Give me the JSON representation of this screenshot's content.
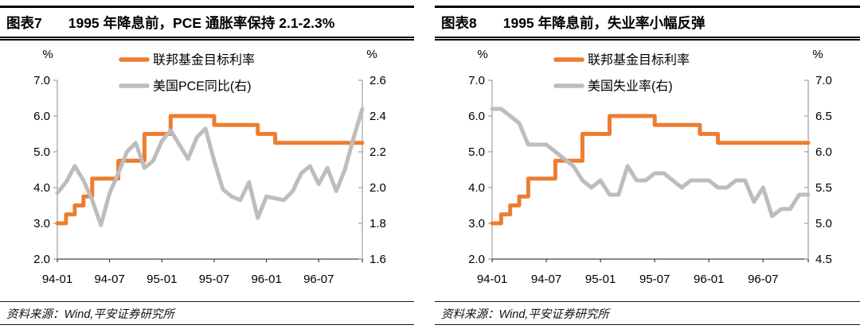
{
  "style": {
    "accent_orange": "#ED7D31",
    "series_gray": "#BDBDBD",
    "axis_line_color": "#A6A6A6",
    "x_axis_color": "#444444",
    "text_color": "#000000"
  },
  "panels": [
    {
      "fig_label": "图表7",
      "title": "1995 年降息前，PCE 通胀率保持 2.1-2.3%",
      "source": "资料来源：Wind,平安证券研究所"
    },
    {
      "fig_label": "图表8",
      "title": "1995 年降息前，失业率小幅反弹",
      "source": "资料来源：Wind,平安证券研究所"
    }
  ],
  "chart_data": [
    {
      "type": "line",
      "title": "1995 年降息前，PCE 通胀率保持 2.1-2.3%",
      "grid": false,
      "legend_position": "top",
      "x": [
        "94-01",
        "94-02",
        "94-03",
        "94-04",
        "94-05",
        "94-06",
        "94-07",
        "94-08",
        "94-09",
        "94-10",
        "94-11",
        "94-12",
        "95-01",
        "95-02",
        "95-03",
        "95-04",
        "95-05",
        "95-06",
        "95-07",
        "95-08",
        "95-09",
        "95-10",
        "95-11",
        "95-12",
        "96-01",
        "96-02",
        "96-03",
        "96-04",
        "96-05",
        "96-06",
        "96-07",
        "96-08",
        "96-09",
        "96-10",
        "96-11",
        "96-12"
      ],
      "x_tick_labels": [
        "94-01",
        "94-07",
        "95-01",
        "95-07",
        "96-01",
        "96-07"
      ],
      "axes": {
        "left": {
          "unit": "%",
          "min": 2.0,
          "max": 7.0,
          "tick_labels": [
            "7.0",
            "6.0",
            "5.0",
            "4.0",
            "3.0",
            "2.0"
          ]
        },
        "right": {
          "unit": "%",
          "min": 1.6,
          "max": 2.6,
          "tick_labels": [
            "2.6",
            "2.4",
            "2.2",
            "2.0",
            "1.8",
            "1.6"
          ]
        }
      },
      "series": [
        {
          "name": "联邦基金目标利率",
          "key": "fed-funds-target-rate-line",
          "axis": "left",
          "color": "#ED7D31",
          "line_style": "step",
          "values": [
            3.0,
            3.25,
            3.5,
            3.75,
            4.25,
            4.25,
            4.25,
            4.75,
            4.75,
            4.75,
            5.5,
            5.5,
            5.5,
            6.0,
            6.0,
            6.0,
            6.0,
            6.0,
            5.75,
            5.75,
            5.75,
            5.75,
            5.75,
            5.5,
            5.5,
            5.25,
            5.25,
            5.25,
            5.25,
            5.25,
            5.25,
            5.25,
            5.25,
            5.25,
            5.25,
            5.25
          ]
        },
        {
          "name": "美国PCE同比(右)",
          "key": "us-pce-yoy-line",
          "axis": "right",
          "color": "#BDBDBD",
          "line_style": "line",
          "values": [
            1.97,
            2.03,
            2.12,
            2.04,
            1.93,
            1.79,
            1.97,
            2.08,
            2.2,
            2.25,
            2.11,
            2.15,
            2.26,
            2.32,
            2.24,
            2.16,
            2.28,
            2.33,
            2.15,
            1.99,
            1.95,
            1.93,
            2.03,
            1.83,
            1.95,
            1.94,
            1.93,
            1.98,
            2.08,
            2.12,
            2.02,
            2.11,
            1.98,
            2.1,
            2.28,
            2.44
          ]
        }
      ]
    },
    {
      "type": "line",
      "title": "1995 年降息前，失业率小幅反弹",
      "grid": false,
      "legend_position": "top",
      "x": [
        "94-01",
        "94-02",
        "94-03",
        "94-04",
        "94-05",
        "94-06",
        "94-07",
        "94-08",
        "94-09",
        "94-10",
        "94-11",
        "94-12",
        "95-01",
        "95-02",
        "95-03",
        "95-04",
        "95-05",
        "95-06",
        "95-07",
        "95-08",
        "95-09",
        "95-10",
        "95-11",
        "95-12",
        "96-01",
        "96-02",
        "96-03",
        "96-04",
        "96-05",
        "96-06",
        "96-07",
        "96-08",
        "96-09",
        "96-10",
        "96-11",
        "96-12"
      ],
      "x_tick_labels": [
        "94-01",
        "94-07",
        "95-01",
        "95-07",
        "96-01",
        "96-07"
      ],
      "axes": {
        "left": {
          "unit": "%",
          "min": 2.0,
          "max": 7.0,
          "tick_labels": [
            "7.0",
            "6.0",
            "5.0",
            "4.0",
            "3.0",
            "2.0"
          ]
        },
        "right": {
          "unit": "%",
          "min": 4.5,
          "max": 7.0,
          "tick_labels": [
            "7.0",
            "6.5",
            "6.0",
            "5.5",
            "5.0",
            "4.5"
          ]
        }
      },
      "series": [
        {
          "name": "联邦基金目标利率",
          "key": "fed-funds-target-rate-line",
          "axis": "left",
          "color": "#ED7D31",
          "line_style": "step",
          "values": [
            3.0,
            3.25,
            3.5,
            3.75,
            4.25,
            4.25,
            4.25,
            4.75,
            4.75,
            4.75,
            5.5,
            5.5,
            5.5,
            6.0,
            6.0,
            6.0,
            6.0,
            6.0,
            5.75,
            5.75,
            5.75,
            5.75,
            5.75,
            5.5,
            5.5,
            5.25,
            5.25,
            5.25,
            5.25,
            5.25,
            5.25,
            5.25,
            5.25,
            5.25,
            5.25,
            5.25
          ]
        },
        {
          "name": "美国失业率(右)",
          "key": "us-unemployment-rate-line",
          "axis": "right",
          "color": "#BDBDBD",
          "line_style": "line",
          "values": [
            6.6,
            6.6,
            6.5,
            6.4,
            6.1,
            6.1,
            6.1,
            6.0,
            5.9,
            5.8,
            5.6,
            5.5,
            5.6,
            5.4,
            5.4,
            5.8,
            5.6,
            5.6,
            5.7,
            5.7,
            5.6,
            5.5,
            5.6,
            5.6,
            5.6,
            5.5,
            5.5,
            5.6,
            5.6,
            5.3,
            5.5,
            5.1,
            5.2,
            5.2,
            5.4,
            5.4
          ]
        }
      ]
    }
  ]
}
